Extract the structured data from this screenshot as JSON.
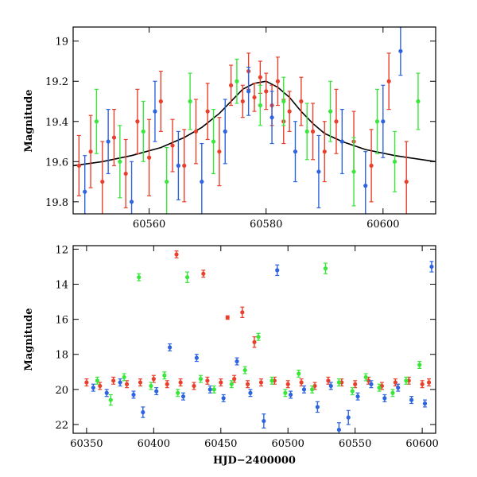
{
  "chart_data": [
    {
      "type": "scatter",
      "title": "",
      "xlabel": "",
      "ylabel": "Magnitude",
      "xlim": [
        60547,
        60609
      ],
      "ylim": [
        19.86,
        18.93
      ],
      "y_inverted": true,
      "grid": false,
      "x_ticks": [
        60560,
        60580,
        60600
      ],
      "x_tick_labels": [
        "60560",
        "60580",
        "60600"
      ],
      "y_ticks": [
        19.0,
        19.2,
        19.4,
        19.6,
        19.8
      ],
      "y_tick_labels": [
        "19",
        "19.2",
        "19.4",
        "19.6",
        "19.8"
      ],
      "model_curve": {
        "color": "#000000",
        "x": [
          60547,
          60552,
          60557,
          60562,
          60566,
          60569,
          60572,
          60574,
          60576,
          60578,
          60580,
          60582,
          60584,
          60586,
          60588,
          60590,
          60593,
          60597,
          60602,
          60609
        ],
        "y": [
          19.62,
          19.6,
          19.57,
          19.53,
          19.48,
          19.43,
          19.36,
          19.3,
          19.24,
          19.21,
          19.2,
          19.23,
          19.28,
          19.35,
          19.41,
          19.46,
          19.5,
          19.54,
          19.57,
          19.6
        ]
      },
      "series": [
        {
          "color": "#e8402c",
          "x": [
            60548,
            60550,
            60552,
            60554,
            60556,
            60558,
            60560,
            60562,
            60564,
            60566,
            60568,
            60570,
            60572,
            60574,
            60576,
            60577,
            60578,
            60579,
            60580,
            60581,
            60582,
            60583,
            60584,
            60586,
            60588,
            60590,
            60592,
            60595,
            60598,
            60601,
            60604
          ],
          "y": [
            19.62,
            19.55,
            19.7,
            19.48,
            19.66,
            19.4,
            19.58,
            19.3,
            19.52,
            19.62,
            19.45,
            19.35,
            19.55,
            19.22,
            19.3,
            19.15,
            19.28,
            19.18,
            19.25,
            19.32,
            19.2,
            19.4,
            19.35,
            19.3,
            19.45,
            19.55,
            19.4,
            19.5,
            19.62,
            19.2,
            19.7
          ],
          "err": [
            0.15,
            0.18,
            0.2,
            0.14,
            0.17,
            0.16,
            0.19,
            0.15,
            0.13,
            0.18,
            0.16,
            0.14,
            0.17,
            0.1,
            0.08,
            0.09,
            0.07,
            0.08,
            0.09,
            0.1,
            0.12,
            0.11,
            0.1,
            0.12,
            0.14,
            0.15,
            0.16,
            0.15,
            0.18,
            0.14,
            0.2
          ]
        },
        {
          "color": "#2e64e0",
          "x": [
            60549,
            60553,
            60557,
            60561,
            60565,
            60569,
            60573,
            60577,
            60581,
            60585,
            60589,
            60593,
            60597,
            60600,
            60603
          ],
          "y": [
            19.75,
            19.5,
            19.8,
            19.35,
            19.62,
            19.7,
            19.45,
            19.25,
            19.38,
            19.55,
            19.65,
            19.5,
            19.72,
            19.4,
            19.05
          ],
          "err": [
            0.18,
            0.16,
            0.2,
            0.15,
            0.17,
            0.19,
            0.16,
            0.12,
            0.13,
            0.15,
            0.18,
            0.16,
            0.17,
            0.18,
            0.12
          ]
        },
        {
          "color": "#3be63b",
          "x": [
            60551,
            60555,
            60559,
            60563,
            60567,
            60571,
            60575,
            60579,
            60583,
            60587,
            60591,
            60595,
            60599,
            60602,
            60606
          ],
          "y": [
            19.4,
            19.6,
            19.45,
            19.7,
            19.3,
            19.5,
            19.2,
            19.32,
            19.3,
            19.45,
            19.35,
            19.65,
            19.4,
            19.6,
            19.3
          ],
          "err": [
            0.16,
            0.18,
            0.15,
            0.17,
            0.14,
            0.16,
            0.11,
            0.1,
            0.12,
            0.14,
            0.15,
            0.17,
            0.16,
            0.15,
            0.14
          ]
        }
      ]
    },
    {
      "type": "scatter",
      "title": "",
      "xlabel": "HJD−2400000",
      "ylabel": "Magnitude",
      "xlim": [
        60340,
        60610
      ],
      "ylim": [
        22.5,
        11.8
      ],
      "y_inverted": true,
      "grid": false,
      "x_ticks": [
        60350,
        60400,
        60450,
        60500,
        60550,
        60600
      ],
      "x_tick_labels": [
        "60350",
        "60400",
        "60450",
        "60500",
        "60550",
        "60600"
      ],
      "y_ticks": [
        12,
        14,
        16,
        18,
        20,
        22
      ],
      "y_tick_labels": [
        "12",
        "14",
        "16",
        "18",
        "20",
        "22"
      ],
      "series": [
        {
          "color": "#e8402c",
          "x": [
            60350,
            60360,
            60370,
            60380,
            60390,
            60400,
            60410,
            60417,
            60420,
            60430,
            60437,
            60440,
            60450,
            60455,
            60460,
            60466,
            60470,
            60475,
            60480,
            60490,
            60500,
            60510,
            60520,
            60530,
            60540,
            60550,
            60560,
            60570,
            60580,
            60590,
            60600,
            60605
          ],
          "y": [
            19.6,
            19.8,
            19.5,
            19.7,
            19.6,
            19.4,
            19.7,
            12.3,
            19.6,
            19.8,
            13.4,
            19.5,
            19.6,
            15.9,
            19.4,
            15.6,
            19.7,
            17.3,
            19.6,
            19.5,
            19.7,
            19.6,
            19.8,
            19.5,
            19.6,
            19.7,
            19.5,
            19.8,
            19.6,
            19.5,
            19.7,
            19.6
          ],
          "err": [
            0.2,
            0.2,
            0.2,
            0.2,
            0.2,
            0.2,
            0.2,
            0.2,
            0.2,
            0.2,
            0.2,
            0.2,
            0.2,
            0.1,
            0.2,
            0.3,
            0.2,
            0.3,
            0.2,
            0.2,
            0.2,
            0.2,
            0.2,
            0.2,
            0.2,
            0.2,
            0.2,
            0.2,
            0.2,
            0.2,
            0.2,
            0.2
          ]
        },
        {
          "color": "#2e64e0",
          "x": [
            60355,
            60365,
            60375,
            60385,
            60392,
            60402,
            60412,
            60422,
            60432,
            60442,
            60452,
            60462,
            60472,
            60482,
            60492,
            60502,
            60512,
            60522,
            60532,
            60538,
            60545,
            60552,
            60562,
            60572,
            60582,
            60592,
            60602,
            60607
          ],
          "y": [
            19.9,
            20.2,
            19.6,
            20.3,
            21.3,
            20.1,
            17.6,
            20.4,
            18.2,
            20.0,
            20.5,
            18.4,
            20.2,
            21.8,
            13.2,
            20.3,
            20.0,
            21.0,
            19.8,
            22.3,
            21.6,
            20.4,
            19.7,
            20.5,
            19.9,
            20.6,
            20.8,
            13.0
          ],
          "err": [
            0.2,
            0.2,
            0.2,
            0.2,
            0.3,
            0.2,
            0.2,
            0.2,
            0.2,
            0.2,
            0.2,
            0.2,
            0.2,
            0.4,
            0.3,
            0.2,
            0.2,
            0.3,
            0.2,
            0.4,
            0.4,
            0.2,
            0.2,
            0.2,
            0.2,
            0.2,
            0.2,
            0.3
          ]
        },
        {
          "color": "#3be63b",
          "x": [
            60358,
            60368,
            60378,
            60389,
            60398,
            60408,
            60418,
            60425,
            60435,
            60445,
            60458,
            60468,
            60478,
            60488,
            60498,
            60508,
            60518,
            60528,
            60538,
            60548,
            60558,
            60568,
            60578,
            60588,
            60598
          ],
          "y": [
            19.5,
            20.6,
            19.3,
            13.6,
            19.8,
            19.2,
            20.2,
            13.6,
            19.4,
            20.0,
            19.7,
            18.9,
            17.0,
            19.5,
            20.2,
            19.1,
            20.0,
            13.1,
            19.6,
            20.1,
            19.3,
            19.9,
            20.2,
            19.5,
            18.6
          ],
          "err": [
            0.2,
            0.3,
            0.2,
            0.2,
            0.2,
            0.2,
            0.2,
            0.3,
            0.2,
            0.2,
            0.2,
            0.2,
            0.2,
            0.2,
            0.2,
            0.2,
            0.2,
            0.3,
            0.2,
            0.2,
            0.2,
            0.2,
            0.2,
            0.2,
            0.2
          ]
        }
      ]
    }
  ]
}
